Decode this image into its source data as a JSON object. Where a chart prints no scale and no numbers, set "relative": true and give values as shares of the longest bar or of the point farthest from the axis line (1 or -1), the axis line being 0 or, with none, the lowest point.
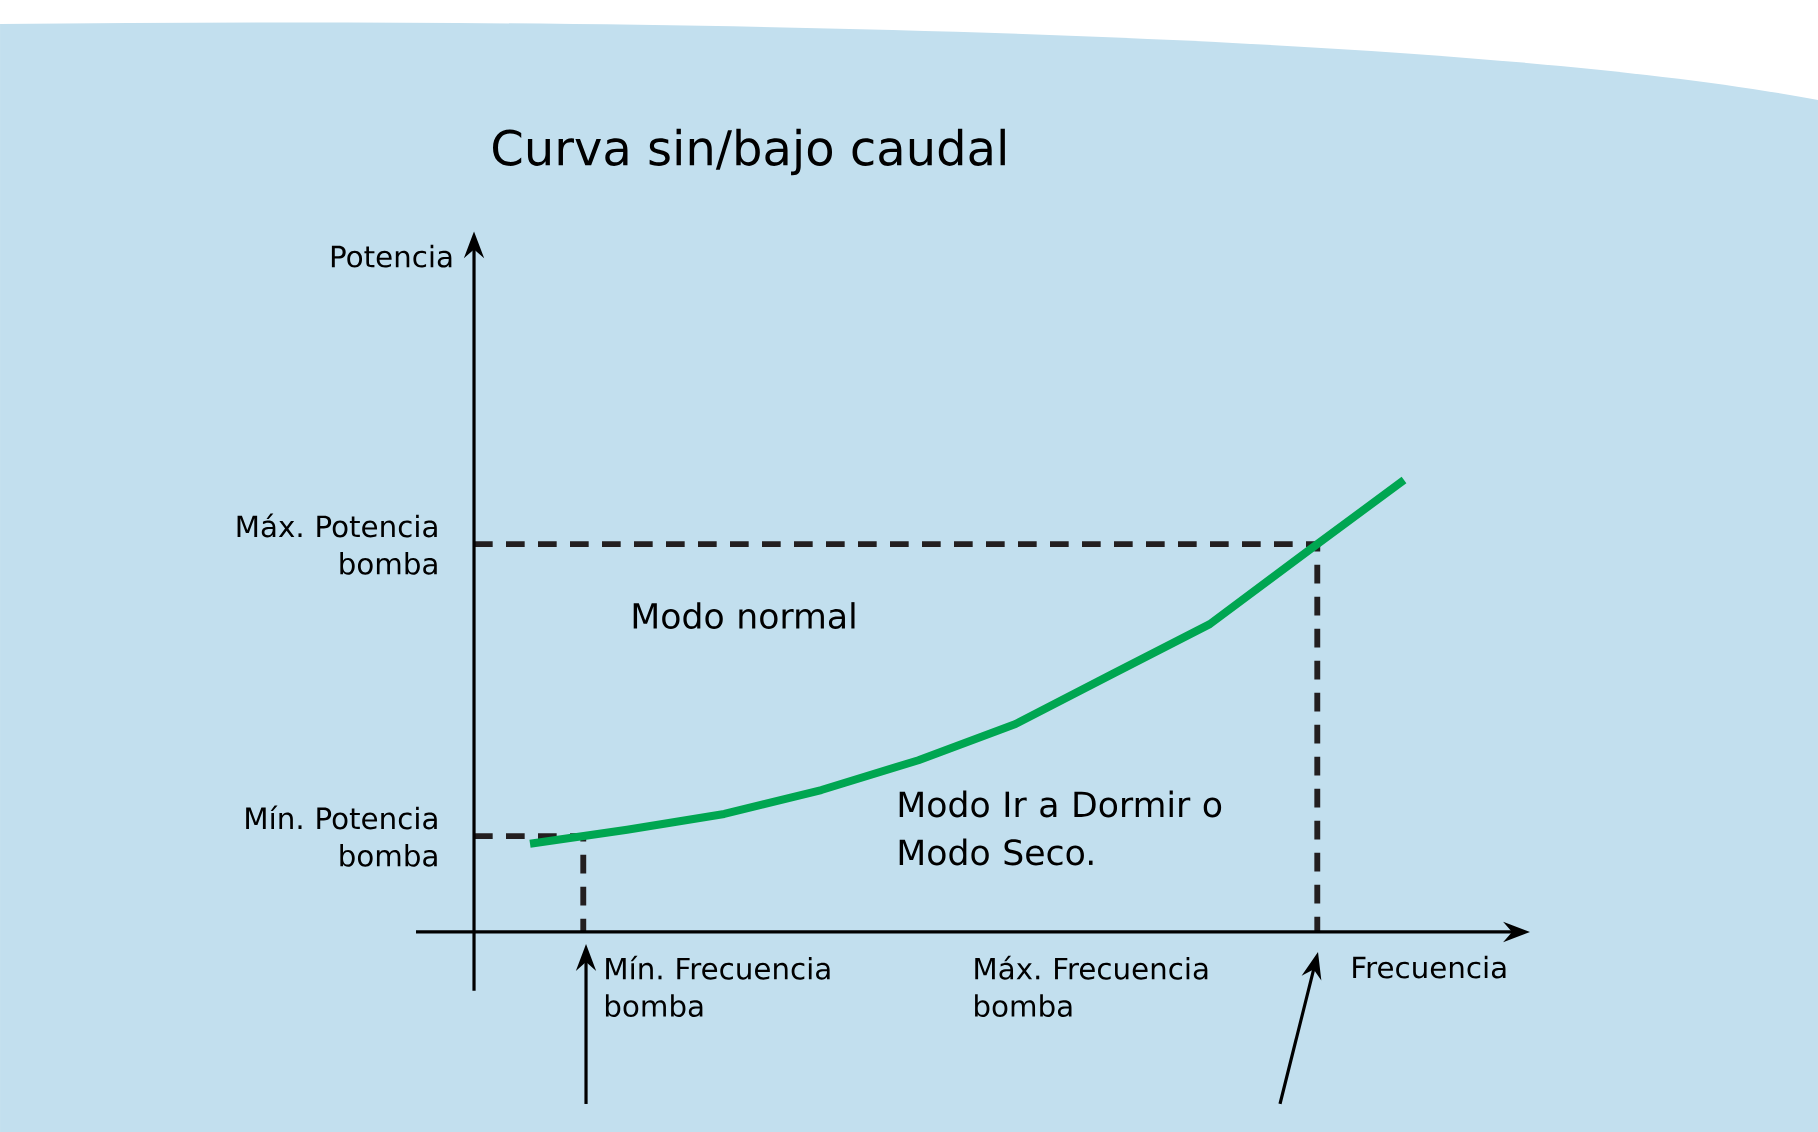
{
  "chart_data": {
    "type": "line",
    "title": "Curva sin/bajo caudal",
    "xlabel": "Frecuencia",
    "relative": true,
    "categories": [
      null,
      null,
      null,
      null,
      null,
      null,
      null,
      null,
      null,
      null
    ],
    "series": [
      {
        "color": "#00a651",
        "values": [
          0.195,
          0.226,
          0.261,
          0.314,
          0.38,
          0.46,
          0.571,
          0.681,
          0.841,
          1.0
        ]
      }
    ],
    "marker": "none",
    "line_style": "solid",
    "ref_lines": [
      {
        "axis": "y",
        "value": 0.212,
        "label": "Mín. Potencia bomba",
        "color": "#231f20",
        "line_style": "dashed"
      },
      {
        "axis": "y",
        "value": 0.858,
        "label": "Máx. Potencia bomba",
        "color": "#231f20",
        "line_style": "dashed"
      }
    ],
    "annotations": [
      "Modo normal",
      "Modo Ir a Dormir o Modo Seco.",
      "Mín. Frecuencia bomba",
      "Máx. Frecuencia bomba",
      "Potencia"
    ]
  }
}
